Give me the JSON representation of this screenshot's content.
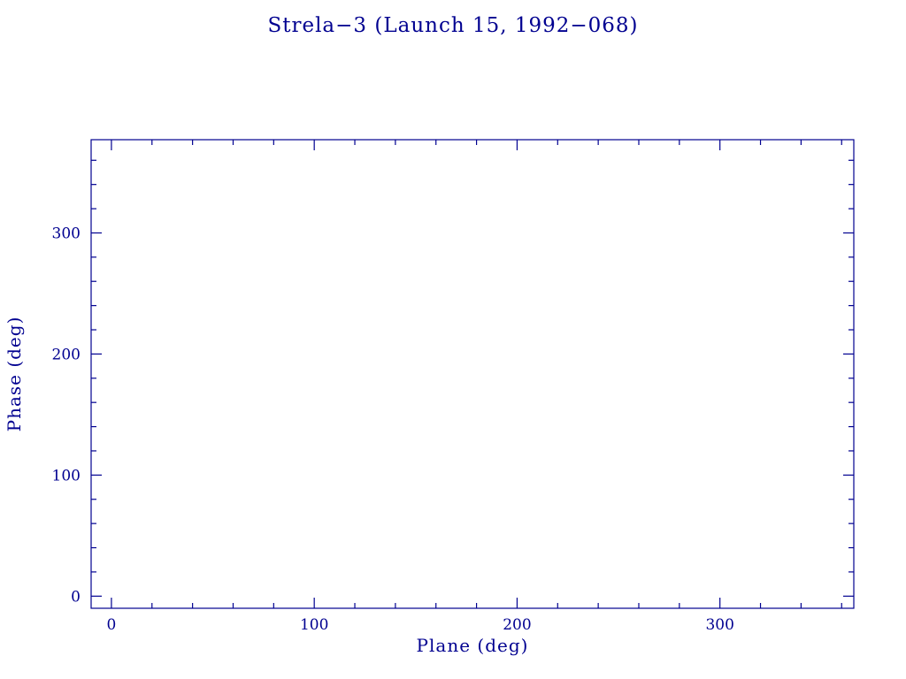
{
  "page": {
    "background": "#ffffff"
  },
  "chart_data": {
    "type": "scatter",
    "title": "Strela−3 (Launch 15, 1992−068)",
    "xlabel": "Plane (deg)",
    "ylabel": "Phase (deg)",
    "xlim": [
      -10,
      366
    ],
    "ylim": [
      -10,
      377
    ],
    "x_major_ticks": [
      0,
      100,
      200,
      300
    ],
    "y_major_ticks": [
      0,
      100,
      200,
      300
    ],
    "minor_tick_interval": 20,
    "points": [],
    "grid": false,
    "legend": false,
    "accent_color": "#000090"
  }
}
